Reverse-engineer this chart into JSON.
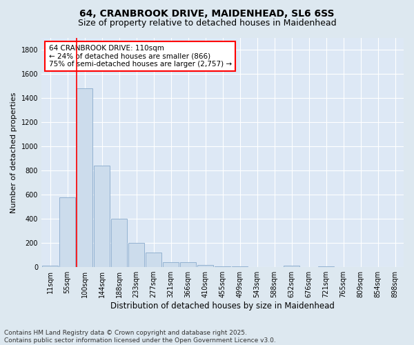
{
  "title_line1": "64, CRANBROOK DRIVE, MAIDENHEAD, SL6 6SS",
  "title_line2": "Size of property relative to detached houses in Maidenhead",
  "xlabel": "Distribution of detached houses by size in Maidenhead",
  "ylabel": "Number of detached properties",
  "categories": [
    "11sqm",
    "55sqm",
    "100sqm",
    "144sqm",
    "188sqm",
    "233sqm",
    "277sqm",
    "321sqm",
    "366sqm",
    "410sqm",
    "455sqm",
    "499sqm",
    "543sqm",
    "588sqm",
    "632sqm",
    "676sqm",
    "721sqm",
    "765sqm",
    "809sqm",
    "854sqm",
    "898sqm"
  ],
  "bar_values": [
    12,
    580,
    1480,
    840,
    400,
    200,
    120,
    40,
    40,
    18,
    8,
    4,
    0,
    0,
    12,
    0,
    8,
    0,
    0,
    0,
    0
  ],
  "bar_color": "#ccdcec",
  "bar_edgecolor": "#88aacc",
  "vline_xindex": 2,
  "vline_color": "red",
  "annotation_box_text": "64 CRANBROOK DRIVE: 110sqm\n← 24% of detached houses are smaller (866)\n75% of semi-detached houses are larger (2,757) →",
  "annotation_box_facecolor": "white",
  "annotation_box_edgecolor": "red",
  "ylim": [
    0,
    1900
  ],
  "yticks": [
    0,
    200,
    400,
    600,
    800,
    1000,
    1200,
    1400,
    1600,
    1800
  ],
  "bg_color": "#dde8f0",
  "plot_bg_color": "#dde8f5",
  "grid_color": "white",
  "footnote": "Contains HM Land Registry data © Crown copyright and database right 2025.\nContains public sector information licensed under the Open Government Licence v3.0.",
  "title_fontsize": 10,
  "subtitle_fontsize": 9,
  "xlabel_fontsize": 8.5,
  "ylabel_fontsize": 8,
  "tick_fontsize": 7,
  "annot_fontsize": 7.5,
  "footnote_fontsize": 6.5
}
